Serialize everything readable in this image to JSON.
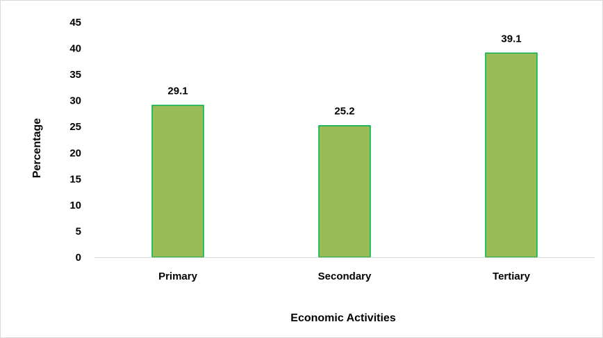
{
  "chart_data": {
    "type": "bar",
    "title": "",
    "categories": [
      "Primary",
      "Secondary",
      "Tertiary"
    ],
    "values": [
      29.1,
      25.2,
      39.1
    ],
    "data_labels": [
      "29.1",
      "25.2",
      "39.1"
    ],
    "xlabel": "Economic Activities",
    "ylabel": "Percentage",
    "ylim": [
      0,
      45
    ],
    "yticks": [
      "0",
      "5",
      "10",
      "15",
      "20",
      "25",
      "30",
      "35",
      "40",
      "45"
    ],
    "grid": false,
    "legend": "none",
    "colors": {
      "bar_fill": "#9bbb59",
      "bar_stroke": "#00b050",
      "axis": "#d9d9d9",
      "text": "#000000"
    }
  }
}
